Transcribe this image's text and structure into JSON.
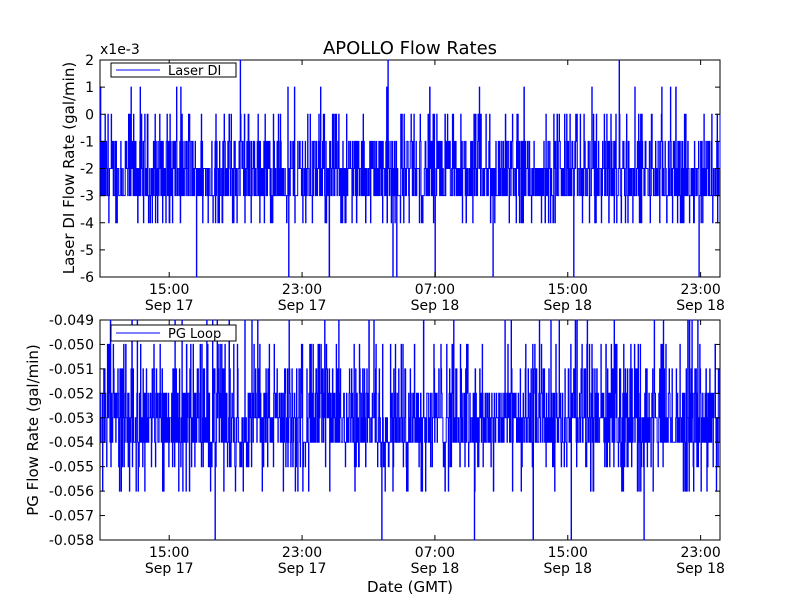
{
  "chart_data": [
    {
      "type": "line",
      "title": "APOLLO Flow Rates",
      "ylabel": "Laser DI Flow Rate (gal/min)",
      "xlabel": "",
      "offset_label": "x1e-3",
      "legend": {
        "entries": [
          "Laser DI"
        ],
        "placement": "top-left"
      },
      "ylim": [
        -0.006,
        0.002
      ],
      "yticks": [
        2,
        1,
        0,
        -1,
        -2,
        -3,
        -4,
        -5,
        -6
      ],
      "xlim": [
        "Sep 17 10:50",
        "Sep 19 00:10"
      ],
      "xticks": [
        {
          "time": "15:00",
          "date": "Sep 17",
          "at": "Sep 17 15:00"
        },
        {
          "time": "23:00",
          "date": "Sep 17",
          "at": "Sep 17 23:00"
        },
        {
          "time": "07:00",
          "date": "Sep 18",
          "at": "Sep 18 07:00"
        },
        {
          "time": "15:00",
          "date": "Sep 18",
          "at": "Sep 18 15:00"
        },
        {
          "time": "23:00",
          "date": "Sep 18",
          "at": "Sep 18 23:00"
        }
      ],
      "series": [
        {
          "name": "Laser DI",
          "color": "#0000ff",
          "typical_range": [
            -0.003,
            -0.001
          ],
          "common_levels": [
            -0.004,
            -0.003,
            -0.002,
            -0.001,
            0,
            0.001
          ],
          "extremes": {
            "min": -0.006,
            "max": 0.002
          }
        }
      ]
    },
    {
      "type": "line",
      "title": "",
      "ylabel": "PG Flow Rate (gal/min)",
      "xlabel": "Date (GMT)",
      "legend": {
        "entries": [
          "PG Loop"
        ],
        "placement": "top-left"
      },
      "ylim": [
        -0.058,
        -0.049
      ],
      "yticks": [
        "-0.049",
        "-0.050",
        "-0.051",
        "-0.052",
        "-0.053",
        "-0.054",
        "-0.055",
        "-0.056",
        "-0.057",
        "-0.058"
      ],
      "xlim": [
        "Sep 17 10:50",
        "Sep 19 00:10"
      ],
      "xticks": [
        {
          "time": "15:00",
          "date": "Sep 17",
          "at": "Sep 17 15:00"
        },
        {
          "time": "23:00",
          "date": "Sep 17",
          "at": "Sep 17 23:00"
        },
        {
          "time": "07:00",
          "date": "Sep 18",
          "at": "Sep 18 07:00"
        },
        {
          "time": "15:00",
          "date": "Sep 18",
          "at": "Sep 18 15:00"
        },
        {
          "time": "23:00",
          "date": "Sep 18",
          "at": "Sep 18 23:00"
        }
      ],
      "series": [
        {
          "name": "PG Loop",
          "color": "#0000ff",
          "typical_range": [
            -0.054,
            -0.052
          ],
          "common_levels": [
            -0.056,
            -0.055,
            -0.054,
            -0.053,
            -0.052,
            -0.051,
            -0.05,
            -0.049
          ],
          "extremes": {
            "min": -0.058,
            "max": -0.049
          }
        }
      ]
    }
  ]
}
